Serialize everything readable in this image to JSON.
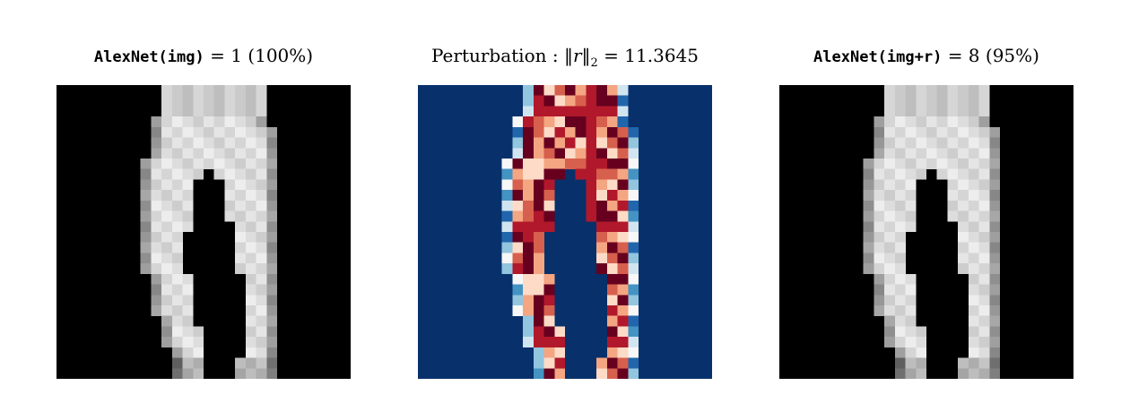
{
  "panels": [
    {
      "id": "original",
      "title_code": "AlexNet(img)",
      "title_rest": "= 1 (100%)",
      "image_description": "28x28 grayscale image of trousers"
    },
    {
      "id": "perturbation",
      "title_main": "Perturbation :",
      "norm_symbol": "‖r‖",
      "norm_sub": "2",
      "norm_value": "= 11.3645",
      "colormap": "RdBu",
      "background_color": "#08306b",
      "positive_color": "#b2182b",
      "light_color": "#fddbc7"
    },
    {
      "id": "adversarial",
      "title_code": "AlexNet(img+r)",
      "title_rest": "= 8 (95%)",
      "image_description": "28x28 grayscale image of trousers with perturbation"
    }
  ]
}
